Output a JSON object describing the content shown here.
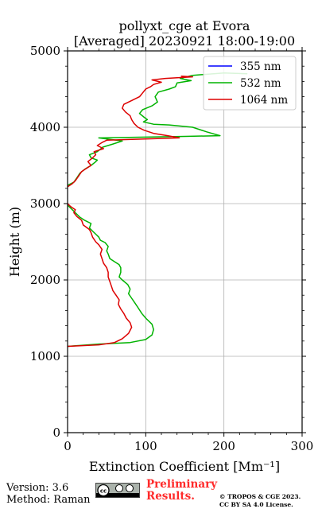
{
  "chart_data": {
    "type": "line",
    "title": "pollyxt_cge at Evora",
    "subtitle": "[Averaged] 20230921 18:00-19:00",
    "xlabel": "Extinction Coefficient [Mm⁻¹]",
    "ylabel": "Height (m)",
    "xlim": [
      0,
      300
    ],
    "ylim": [
      0,
      5000
    ],
    "xticks": [
      0,
      100,
      200,
      300
    ],
    "yticks": [
      0,
      1000,
      2000,
      3000,
      4000,
      5000
    ],
    "grid": true,
    "legend_position": "top-right",
    "series": [
      {
        "name": "355 nm",
        "color": "#0000ff",
        "points": []
      },
      {
        "name": "532 nm",
        "color": "#00b300",
        "points": [
          [
            0,
            1130
          ],
          [
            40,
            1160
          ],
          [
            80,
            1180
          ],
          [
            100,
            1220
          ],
          [
            108,
            1280
          ],
          [
            110,
            1350
          ],
          [
            108,
            1420
          ],
          [
            100,
            1500
          ],
          [
            95,
            1560
          ],
          [
            90,
            1640
          ],
          [
            86,
            1700
          ],
          [
            82,
            1760
          ],
          [
            78,
            1820
          ],
          [
            80,
            1880
          ],
          [
            77,
            1940
          ],
          [
            70,
            2000
          ],
          [
            66,
            2040
          ],
          [
            68,
            2100
          ],
          [
            68,
            2160
          ],
          [
            66,
            2200
          ],
          [
            60,
            2240
          ],
          [
            54,
            2280
          ],
          [
            52,
            2340
          ],
          [
            50,
            2380
          ],
          [
            52,
            2440
          ],
          [
            48,
            2490
          ],
          [
            42,
            2520
          ],
          [
            40,
            2560
          ],
          [
            36,
            2600
          ],
          [
            32,
            2640
          ],
          [
            28,
            2680
          ],
          [
            30,
            2740
          ],
          [
            22,
            2780
          ],
          [
            16,
            2820
          ],
          [
            10,
            2880
          ],
          [
            6,
            2920
          ],
          [
            0,
            2980
          ],
          [
            0,
            3240
          ],
          [
            8,
            3280
          ],
          [
            12,
            3340
          ],
          [
            16,
            3400
          ],
          [
            22,
            3450
          ],
          [
            30,
            3500
          ],
          [
            35,
            3540
          ],
          [
            38,
            3570
          ],
          [
            30,
            3600
          ],
          [
            28,
            3640
          ],
          [
            38,
            3680
          ],
          [
            45,
            3740
          ],
          [
            58,
            3780
          ],
          [
            70,
            3820
          ],
          [
            40,
            3860
          ],
          [
            150,
            3880
          ],
          [
            195,
            3890
          ],
          [
            178,
            3940
          ],
          [
            160,
            4000
          ],
          [
            130,
            4030
          ],
          [
            110,
            4040
          ],
          [
            97,
            4070
          ],
          [
            102,
            4100
          ],
          [
            98,
            4130
          ],
          [
            92,
            4180
          ],
          [
            96,
            4230
          ],
          [
            108,
            4280
          ],
          [
            115,
            4330
          ],
          [
            112,
            4400
          ],
          [
            116,
            4460
          ],
          [
            130,
            4500
          ],
          [
            138,
            4530
          ],
          [
            140,
            4580
          ],
          [
            158,
            4610
          ],
          [
            144,
            4640
          ],
          [
            160,
            4680
          ],
          [
            200,
            4710
          ],
          [
            230,
            4700
          ]
        ]
      },
      {
        "name": "1064 nm",
        "color": "#dd0000",
        "points": [
          [
            0,
            1130
          ],
          [
            40,
            1150
          ],
          [
            60,
            1180
          ],
          [
            70,
            1230
          ],
          [
            78,
            1300
          ],
          [
            82,
            1380
          ],
          [
            80,
            1440
          ],
          [
            75,
            1500
          ],
          [
            72,
            1560
          ],
          [
            68,
            1620
          ],
          [
            65,
            1680
          ],
          [
            66,
            1740
          ],
          [
            62,
            1800
          ],
          [
            58,
            1860
          ],
          [
            56,
            1920
          ],
          [
            54,
            1980
          ],
          [
            52,
            2040
          ],
          [
            52,
            2100
          ],
          [
            50,
            2160
          ],
          [
            46,
            2220
          ],
          [
            44,
            2280
          ],
          [
            42,
            2340
          ],
          [
            44,
            2400
          ],
          [
            40,
            2460
          ],
          [
            36,
            2500
          ],
          [
            32,
            2560
          ],
          [
            30,
            2620
          ],
          [
            28,
            2660
          ],
          [
            20,
            2720
          ],
          [
            18,
            2780
          ],
          [
            12,
            2830
          ],
          [
            8,
            2880
          ],
          [
            10,
            2920
          ],
          [
            4,
            2960
          ],
          [
            0,
            3000
          ],
          [
            0,
            3220
          ],
          [
            6,
            3260
          ],
          [
            10,
            3300
          ],
          [
            14,
            3360
          ],
          [
            18,
            3420
          ],
          [
            24,
            3460
          ],
          [
            30,
            3500
          ],
          [
            26,
            3550
          ],
          [
            32,
            3600
          ],
          [
            36,
            3640
          ],
          [
            34,
            3680
          ],
          [
            46,
            3720
          ],
          [
            38,
            3760
          ],
          [
            44,
            3800
          ],
          [
            50,
            3830
          ],
          [
            143,
            3860
          ],
          [
            128,
            3890
          ],
          [
            110,
            3920
          ],
          [
            98,
            3960
          ],
          [
            90,
            4000
          ],
          [
            85,
            4050
          ],
          [
            82,
            4100
          ],
          [
            80,
            4150
          ],
          [
            74,
            4200
          ],
          [
            70,
            4250
          ],
          [
            72,
            4300
          ],
          [
            82,
            4350
          ],
          [
            92,
            4400
          ],
          [
            96,
            4450
          ],
          [
            100,
            4500
          ],
          [
            106,
            4530
          ],
          [
            110,
            4560
          ],
          [
            120,
            4590
          ],
          [
            108,
            4620
          ],
          [
            125,
            4640
          ],
          [
            160,
            4660
          ],
          [
            145,
            4670
          ]
        ]
      }
    ]
  },
  "footer": {
    "version": "Version: 3.6",
    "method": "Method: Raman",
    "license_badge": "cc BY SA",
    "preliminary_line1": "Preliminary",
    "preliminary_line2": "Results.",
    "copyright_line1": "© TROPOS & CGE 2023.",
    "copyright_line2": "CC BY SA 4.0 License."
  }
}
